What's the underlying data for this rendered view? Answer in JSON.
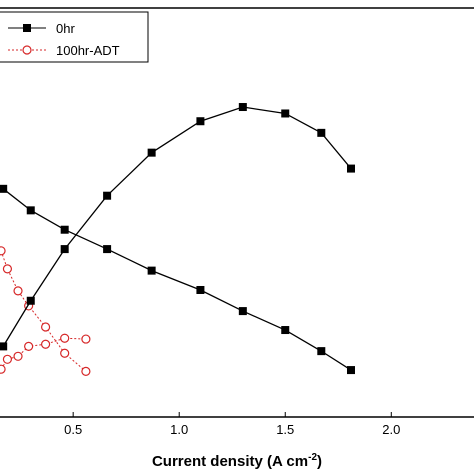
{
  "chart_data": {
    "type": "line",
    "xlabel": {
      "text": "Current density (A cm",
      "sup": "-2",
      "end": ")"
    },
    "xlim": [
      0.155,
      2.39
    ],
    "xticks": [
      0.5,
      {
        "value": 1,
        "label": "1.0"
      },
      1.5,
      {
        "value": 2,
        "label": "2.0"
      }
    ],
    "ylim": [
      5,
      100
    ],
    "legend": "upper left",
    "series": [
      {
        "name": "0hr",
        "color": "#000000",
        "marker": "square",
        "dash": false,
        "x": [
          0.17,
          0.3,
          0.46,
          0.66,
          0.87,
          1.1,
          1.3,
          1.5,
          1.67,
          1.81
        ],
        "values": [
          58,
          53,
          48.5,
          44,
          39,
          34.5,
          29.6,
          25.2,
          20.3,
          15.9
        ]
      },
      {
        "name": "100hr-ADT",
        "color": "#d62728",
        "marker": "circle",
        "dash": true,
        "x": [
          0.16,
          0.19,
          0.24,
          0.29,
          0.37,
          0.46,
          0.56
        ],
        "values": [
          43.6,
          39.4,
          34.3,
          30.8,
          25.9,
          19.8,
          15.6
        ]
      },
      {
        "color": "#000000",
        "marker": "square",
        "dash": false,
        "x": [
          0.17,
          0.3,
          0.46,
          0.66,
          0.87,
          1.1,
          1.3,
          1.5,
          1.67,
          1.81
        ],
        "values": [
          21.4,
          32,
          44,
          56.4,
          66.4,
          73.7,
          77,
          75.5,
          71,
          62.7
        ]
      },
      {
        "color": "#d62728",
        "marker": "circle",
        "dash": true,
        "x": [
          0.16,
          0.19,
          0.24,
          0.29,
          0.37,
          0.46,
          0.56
        ],
        "values": [
          16.1,
          18.4,
          19.1,
          21.4,
          21.9,
          23.3,
          23.1
        ]
      }
    ]
  }
}
